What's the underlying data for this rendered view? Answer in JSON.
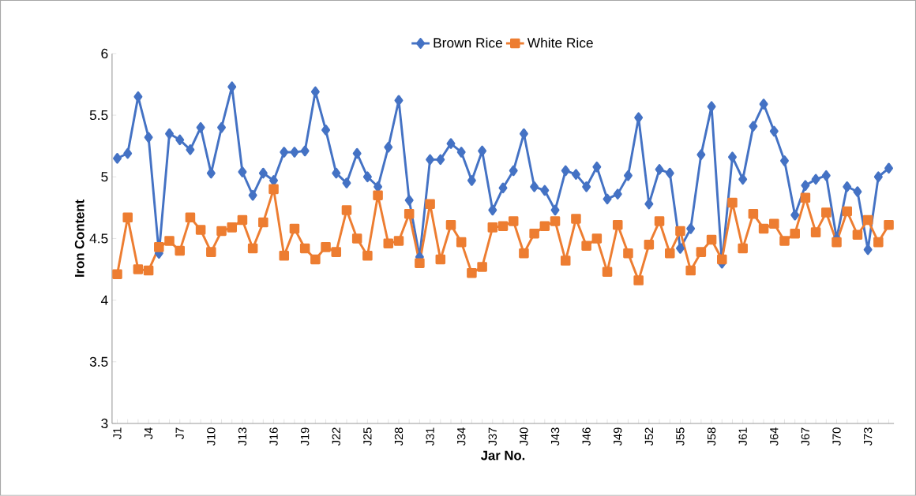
{
  "chart_data": {
    "type": "line",
    "xlabel": "Jar No.",
    "ylabel": "Iron Content",
    "categories": [
      "J1",
      null,
      null,
      "J4",
      null,
      null,
      "J7",
      null,
      null,
      "J10",
      null,
      null,
      "J13",
      null,
      null,
      "J16",
      null,
      null,
      "J19",
      null,
      null,
      "J22",
      null,
      null,
      "J25",
      null,
      null,
      "J28",
      null,
      null,
      "J31",
      null,
      null,
      "J34",
      null,
      null,
      "J37",
      null,
      null,
      "J40",
      null,
      null,
      "J43",
      null,
      null,
      "J46",
      null,
      null,
      "J49",
      null,
      null,
      "J52",
      null,
      null,
      "J55",
      null,
      null,
      "J58",
      null,
      null,
      "J61",
      null,
      null,
      "J64",
      null,
      null,
      "J67",
      null,
      null,
      "J70",
      null,
      null,
      "J73",
      null,
      null
    ],
    "series": [
      {
        "name": "Brown Rice",
        "color": "#4472c4",
        "marker": "diamond",
        "values": [
          5.15,
          5.19,
          5.65,
          5.32,
          4.38,
          5.35,
          5.3,
          5.22,
          5.4,
          5.03,
          5.4,
          5.73,
          5.04,
          4.85,
          5.03,
          4.97,
          5.2,
          5.2,
          5.21,
          5.69,
          5.38,
          5.03,
          4.95,
          5.19,
          5.0,
          4.92,
          5.24,
          5.62,
          4.81,
          4.35,
          5.14,
          5.14,
          5.27,
          5.2,
          4.97,
          5.21,
          4.73,
          4.91,
          5.05,
          5.35,
          4.92,
          4.89,
          4.73,
          5.05,
          5.02,
          4.92,
          5.08,
          4.82,
          4.86,
          5.01,
          5.48,
          4.78,
          5.06,
          5.03,
          4.42,
          4.58,
          5.18,
          5.57,
          4.3,
          5.16,
          4.98,
          5.41,
          5.59,
          5.37,
          5.13,
          4.69,
          4.93,
          4.98,
          5.01,
          4.5,
          4.92,
          4.88,
          4.41,
          5.0,
          5.07
        ]
      },
      {
        "name": "White Rice",
        "color": "#ed7d31",
        "marker": "square",
        "values": [
          4.21,
          4.67,
          4.25,
          4.24,
          4.43,
          4.48,
          4.4,
          4.67,
          4.57,
          4.39,
          4.56,
          4.59,
          4.65,
          4.42,
          4.63,
          4.9,
          4.36,
          4.58,
          4.42,
          4.33,
          4.43,
          4.39,
          4.73,
          4.5,
          4.36,
          4.85,
          4.46,
          4.48,
          4.7,
          4.3,
          4.78,
          4.33,
          4.61,
          4.47,
          4.22,
          4.27,
          4.59,
          4.6,
          4.64,
          4.38,
          4.54,
          4.6,
          4.64,
          4.32,
          4.66,
          4.44,
          4.5,
          4.23,
          4.61,
          4.38,
          4.16,
          4.45,
          4.64,
          4.38,
          4.56,
          4.24,
          4.39,
          4.49,
          4.33,
          4.79,
          4.42,
          4.7,
          4.58,
          4.62,
          4.48,
          4.54,
          4.83,
          4.55,
          4.71,
          4.47,
          4.72,
          4.53,
          4.65,
          4.47,
          4.61
        ]
      }
    ],
    "ylim": [
      3,
      6
    ],
    "yticks": [
      3,
      3.5,
      4,
      4.5,
      5,
      5.5,
      6
    ],
    "grid": false,
    "legend": "top",
    "line_style": "solid"
  }
}
